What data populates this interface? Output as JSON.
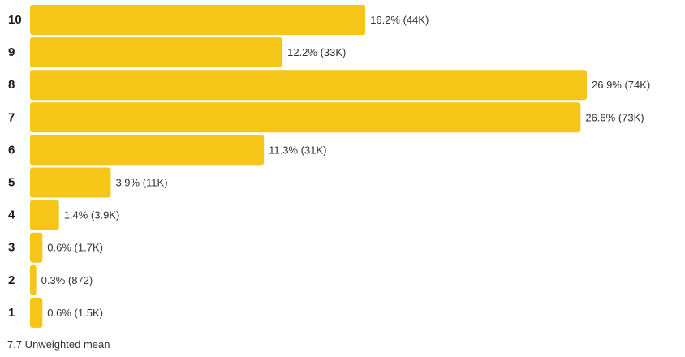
{
  "chart_data": {
    "type": "bar",
    "orientation": "horizontal",
    "categories": [
      "10",
      "9",
      "8",
      "7",
      "6",
      "5",
      "4",
      "3",
      "2",
      "1"
    ],
    "values": [
      16.2,
      12.2,
      26.9,
      26.6,
      11.3,
      3.9,
      1.4,
      0.6,
      0.3,
      0.6
    ],
    "value_labels": [
      "16.2% (44K)",
      "12.2% (33K)",
      "26.9% (74K)",
      "26.6% (73K)",
      "11.3% (31K)",
      "3.9% (11K)",
      "1.4% (3.9K)",
      "0.6% (1.7K)",
      "0.3% (872)",
      "0.6% (1.5K)"
    ],
    "unit": "%",
    "xlim": [
      0,
      26.9
    ],
    "bar_color": "#F5C518",
    "grid": false,
    "legend": "none"
  },
  "footer": {
    "mean_text": "7.7 Unweighted mean"
  }
}
